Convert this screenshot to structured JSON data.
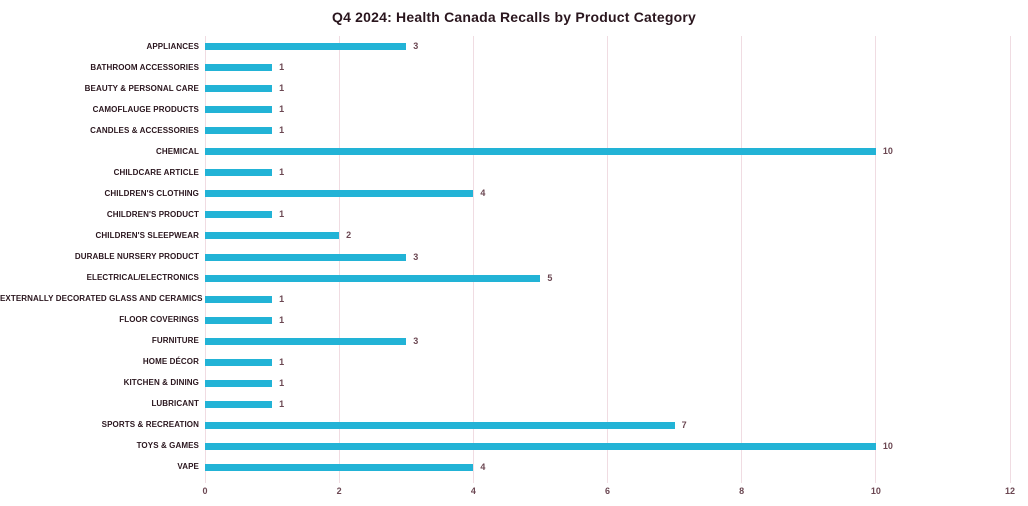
{
  "page": {
    "background_color": "#ffffff"
  },
  "chart_data": {
    "type": "bar",
    "orientation": "horizontal",
    "title": "Q4 2024: Health Canada Recalls by Product Category",
    "categories": [
      "APPLIANCES",
      "BATHROOM ACCESSORIES",
      "BEAUTY & PERSONAL CARE",
      "CAMOFLAUGE PRODUCTS",
      "CANDLES & ACCESSORIES",
      "CHEMICAL",
      "CHILDCARE ARTICLE",
      "CHILDREN'S CLOTHING",
      "CHILDREN'S PRODUCT",
      "CHILDREN'S SLEEPWEAR",
      "DURABLE NURSERY PRODUCT",
      "ELECTRICAL/ELECTRONICS",
      "EXTERNALLY DECORATED GLASS AND CERAMICS",
      "FLOOR COVERINGS",
      "FURNITURE",
      "HOME DÉCOR",
      "KITCHEN & DINING",
      "LUBRICANT",
      "SPORTS & RECREATION",
      "TOYS & GAMES",
      "VAPE"
    ],
    "values": [
      3,
      1,
      1,
      1,
      1,
      10,
      1,
      4,
      1,
      2,
      3,
      5,
      1,
      1,
      3,
      1,
      1,
      1,
      7,
      10,
      4
    ],
    "data_labels": [
      "3",
      "1",
      "1",
      "1",
      "1",
      "10",
      "1",
      "4",
      "1",
      "2",
      "3",
      "5",
      "1",
      "1",
      "3",
      "1",
      "1",
      "1",
      "7",
      "10",
      "4"
    ],
    "xlabel": "",
    "ylabel": "",
    "xlim": [
      0,
      12
    ],
    "x_ticks": [
      0,
      2,
      4,
      6,
      8,
      10,
      12
    ],
    "x_tick_labels": [
      "0",
      "2",
      "4",
      "6",
      "8",
      "10",
      "12"
    ],
    "grid": "vertical",
    "legend": "none",
    "colors": {
      "bar": "#22b3d6",
      "gridline": "#f0dce2",
      "title_text": "#2a161e",
      "category_text": "#2a161e",
      "value_text": "#6b4752",
      "tick_text": "#6b4752"
    }
  }
}
